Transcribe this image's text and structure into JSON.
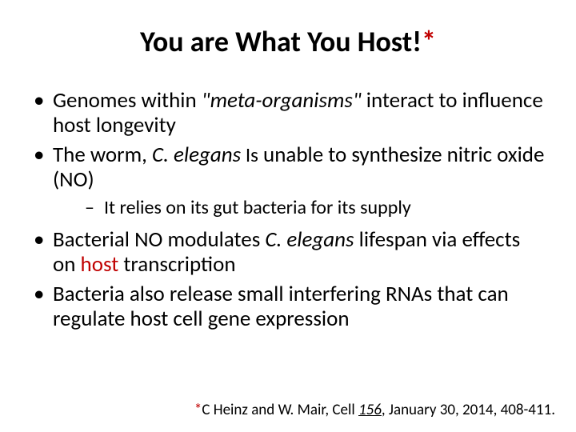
{
  "colors": {
    "text": "#000000",
    "accent_red": "#c00000",
    "background": "#ffffff"
  },
  "typography": {
    "title_fontsize": 36,
    "bullet_fontsize": 27,
    "sub_fontsize": 24,
    "footnote_fontsize": 19,
    "font_family": "Calibri"
  },
  "title": {
    "main": "You are What You Host!",
    "asterisk": "*"
  },
  "bullets": {
    "b1_pre": "Genomes within ",
    "b1_quote": "\"meta-organisms\"",
    "b1_post": " interact to influence host longevity",
    "b2_pre": "The worm, ",
    "b2_species": "C. elegans",
    "b2_post_small": " Is",
    "b2_post": " unable to synthesize nitric oxide (NO)",
    "b2_sub": "It relies on its gut bacteria for its supply",
    "b3_pre": "Bacterial NO modulates ",
    "b3_species": "C. elegans",
    "b3_mid": " lifespan via effects on ",
    "b3_host": "host",
    "b3_post": " transcription",
    "b4": "Bacteria also release small interfering RNAs that can regulate host cell gene expression"
  },
  "footnote": {
    "star": "*",
    "pre": "C Heinz and W. Mair, Cell ",
    "vol": "156",
    "post": ", January 30, 2014, 408-411."
  }
}
